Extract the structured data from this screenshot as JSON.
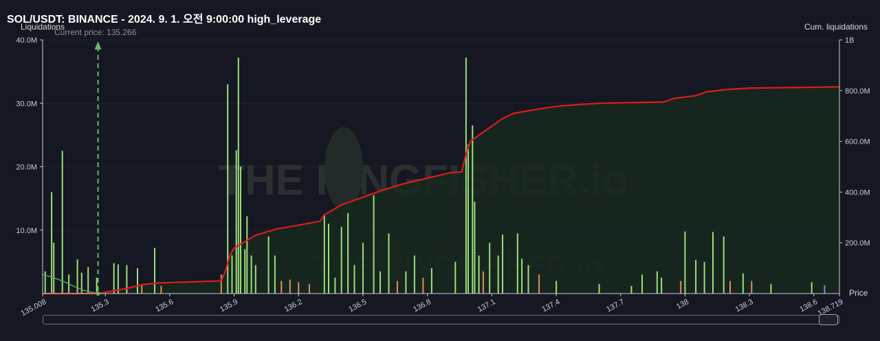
{
  "header": {
    "title": "SOL/USDT: BINANCE - 2024. 9. 1. 오전 9:00:00 high_leverage",
    "current_price_label": "Current price: 135.266"
  },
  "colors": {
    "background": "#151823",
    "cum_line": "#e01b1b",
    "area_fill": "#17281f",
    "green_bar": "#9be07a",
    "orange_bar": "#d9935a",
    "blue_bar": "#6f8fd6",
    "current_price_line": "#6fb56a"
  },
  "chart_data": {
    "type": "bar",
    "xlabel": "Price",
    "ylabel_left": "Liquidations",
    "ylabel_right": "Cum. liquidations",
    "x_ticks": [
      "135.008",
      "135.3",
      "135.6",
      "135.9",
      "136.2",
      "136.5",
      "136.8",
      "137.1",
      "137.4",
      "137.7",
      "138",
      "138.3",
      "138.6",
      "138.719"
    ],
    "xlim": [
      135.008,
      138.719
    ],
    "y_left_ticks": [
      "40.0M",
      "30.0M",
      "20.0M",
      "10.0M"
    ],
    "ylim_left": [
      0,
      40000000
    ],
    "y_right_ticks": [
      "1B",
      "800.0M",
      "600.0M",
      "400.0M",
      "200.0M"
    ],
    "ylim_right": [
      0,
      1000000000
    ],
    "current_price": 135.266,
    "watermark": "THE KINGFISHER.io",
    "bars": [
      {
        "x": 135.02,
        "value": 3500000,
        "color": "green"
      },
      {
        "x": 135.05,
        "value": 16000000,
        "color": "green"
      },
      {
        "x": 135.06,
        "value": 8000000,
        "color": "green"
      },
      {
        "x": 135.1,
        "value": 22500000,
        "color": "green"
      },
      {
        "x": 135.13,
        "value": 3000000,
        "color": "green"
      },
      {
        "x": 135.17,
        "value": 5400000,
        "color": "green"
      },
      {
        "x": 135.19,
        "value": 3300000,
        "color": "green"
      },
      {
        "x": 135.22,
        "value": 4200000,
        "color": "green"
      },
      {
        "x": 135.26,
        "value": 2500000,
        "color": "green"
      },
      {
        "x": 135.34,
        "value": 4800000,
        "color": "green"
      },
      {
        "x": 135.36,
        "value": 4600000,
        "color": "green"
      },
      {
        "x": 135.4,
        "value": 4500000,
        "color": "green"
      },
      {
        "x": 135.45,
        "value": 4000000,
        "color": "green"
      },
      {
        "x": 135.47,
        "value": 1500000,
        "color": "orange"
      },
      {
        "x": 135.53,
        "value": 7200000,
        "color": "green"
      },
      {
        "x": 135.56,
        "value": 1200000,
        "color": "orange"
      },
      {
        "x": 135.84,
        "value": 3000000,
        "color": "orange"
      },
      {
        "x": 135.87,
        "value": 33000000,
        "color": "green"
      },
      {
        "x": 135.89,
        "value": 6000000,
        "color": "green"
      },
      {
        "x": 135.91,
        "value": 22600000,
        "color": "green"
      },
      {
        "x": 135.92,
        "value": 37200000,
        "color": "green"
      },
      {
        "x": 135.93,
        "value": 20000000,
        "color": "green"
      },
      {
        "x": 135.95,
        "value": 7000000,
        "color": "green"
      },
      {
        "x": 135.96,
        "value": 12200000,
        "color": "green"
      },
      {
        "x": 135.98,
        "value": 6000000,
        "color": "green"
      },
      {
        "x": 136.0,
        "value": 4500000,
        "color": "green"
      },
      {
        "x": 136.06,
        "value": 9000000,
        "color": "green"
      },
      {
        "x": 136.09,
        "value": 6000000,
        "color": "green"
      },
      {
        "x": 136.12,
        "value": 2000000,
        "color": "orange"
      },
      {
        "x": 136.16,
        "value": 2200000,
        "color": "orange"
      },
      {
        "x": 136.2,
        "value": 1800000,
        "color": "orange"
      },
      {
        "x": 136.25,
        "value": 1500000,
        "color": "orange"
      },
      {
        "x": 136.32,
        "value": 12500000,
        "color": "green"
      },
      {
        "x": 136.34,
        "value": 11000000,
        "color": "green"
      },
      {
        "x": 136.37,
        "value": 2500000,
        "color": "green"
      },
      {
        "x": 136.4,
        "value": 10500000,
        "color": "green"
      },
      {
        "x": 136.43,
        "value": 12700000,
        "color": "green"
      },
      {
        "x": 136.46,
        "value": 4500000,
        "color": "green"
      },
      {
        "x": 136.5,
        "value": 8000000,
        "color": "green"
      },
      {
        "x": 136.55,
        "value": 15500000,
        "color": "green"
      },
      {
        "x": 136.58,
        "value": 3500000,
        "color": "green"
      },
      {
        "x": 136.62,
        "value": 9500000,
        "color": "green"
      },
      {
        "x": 136.66,
        "value": 2000000,
        "color": "orange"
      },
      {
        "x": 136.7,
        "value": 3500000,
        "color": "green"
      },
      {
        "x": 136.74,
        "value": 6000000,
        "color": "green"
      },
      {
        "x": 136.78,
        "value": 2500000,
        "color": "orange"
      },
      {
        "x": 136.82,
        "value": 4000000,
        "color": "green"
      },
      {
        "x": 136.93,
        "value": 5000000,
        "color": "green"
      },
      {
        "x": 136.98,
        "value": 37200000,
        "color": "green"
      },
      {
        "x": 136.99,
        "value": 23500000,
        "color": "green"
      },
      {
        "x": 137.01,
        "value": 26500000,
        "color": "green"
      },
      {
        "x": 137.02,
        "value": 14500000,
        "color": "green"
      },
      {
        "x": 137.04,
        "value": 6000000,
        "color": "green"
      },
      {
        "x": 137.06,
        "value": 3500000,
        "color": "orange"
      },
      {
        "x": 137.09,
        "value": 8000000,
        "color": "green"
      },
      {
        "x": 137.13,
        "value": 6000000,
        "color": "green"
      },
      {
        "x": 137.15,
        "value": 9300000,
        "color": "green"
      },
      {
        "x": 137.22,
        "value": 9500000,
        "color": "green"
      },
      {
        "x": 137.24,
        "value": 5500000,
        "color": "green"
      },
      {
        "x": 137.27,
        "value": 4500000,
        "color": "green"
      },
      {
        "x": 137.32,
        "value": 3000000,
        "color": "orange"
      },
      {
        "x": 137.4,
        "value": 2000000,
        "color": "green"
      },
      {
        "x": 137.6,
        "value": 1500000,
        "color": "green"
      },
      {
        "x": 137.75,
        "value": 1200000,
        "color": "green"
      },
      {
        "x": 137.8,
        "value": 3000000,
        "color": "green"
      },
      {
        "x": 137.87,
        "value": 3500000,
        "color": "green"
      },
      {
        "x": 137.89,
        "value": 2500000,
        "color": "green"
      },
      {
        "x": 137.98,
        "value": 2000000,
        "color": "orange"
      },
      {
        "x": 138.0,
        "value": 9800000,
        "color": "green"
      },
      {
        "x": 138.05,
        "value": 5300000,
        "color": "green"
      },
      {
        "x": 138.09,
        "value": 5000000,
        "color": "green"
      },
      {
        "x": 138.13,
        "value": 9700000,
        "color": "green"
      },
      {
        "x": 138.18,
        "value": 9000000,
        "color": "green"
      },
      {
        "x": 138.21,
        "value": 2000000,
        "color": "orange"
      },
      {
        "x": 138.27,
        "value": 3200000,
        "color": "green"
      },
      {
        "x": 138.31,
        "value": 2000000,
        "color": "orange"
      },
      {
        "x": 138.4,
        "value": 1500000,
        "color": "green"
      },
      {
        "x": 138.59,
        "value": 1800000,
        "color": "green"
      },
      {
        "x": 138.65,
        "value": 1300000,
        "color": "blue"
      }
    ],
    "cumulative_series": {
      "name": "Cum. liquidations",
      "x": [
        135.008,
        135.1,
        135.266,
        135.4,
        135.47,
        135.55,
        135.7,
        135.84,
        135.86,
        135.88,
        135.9,
        135.95,
        136.0,
        136.1,
        136.2,
        136.3,
        136.32,
        136.4,
        136.5,
        136.6,
        136.7,
        136.8,
        136.9,
        136.96,
        136.98,
        137.0,
        137.05,
        137.1,
        137.15,
        137.2,
        137.3,
        137.4,
        137.5,
        137.6,
        137.7,
        137.9,
        137.95,
        138.05,
        138.1,
        138.2,
        138.3,
        138.5,
        138.719
      ],
      "values": [
        0,
        0,
        0,
        20000000,
        35000000,
        42000000,
        46000000,
        50000000,
        90000000,
        150000000,
        180000000,
        205000000,
        230000000,
        255000000,
        270000000,
        285000000,
        310000000,
        350000000,
        380000000,
        410000000,
        435000000,
        455000000,
        475000000,
        480000000,
        550000000,
        600000000,
        630000000,
        660000000,
        690000000,
        710000000,
        725000000,
        738000000,
        745000000,
        750000000,
        752000000,
        755000000,
        770000000,
        780000000,
        795000000,
        805000000,
        810000000,
        812000000,
        815000000
      ]
    },
    "green_line_series": {
      "x": [
        135.008,
        135.05,
        135.1,
        135.15,
        135.2,
        135.266
      ],
      "values": [
        3000000,
        2600000,
        2000000,
        1200000,
        500000,
        0
      ]
    }
  }
}
